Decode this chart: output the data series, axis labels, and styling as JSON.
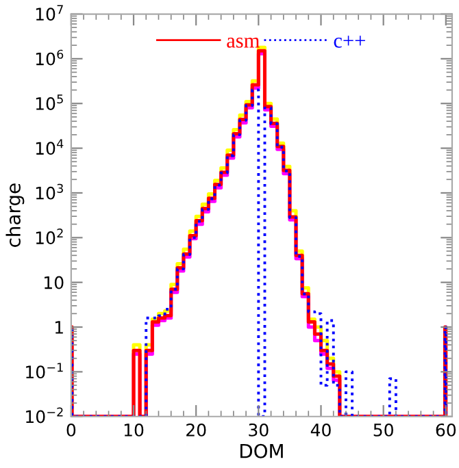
{
  "chart_data": {
    "type": "histogram",
    "xlabel": "DOM",
    "ylabel": "charge",
    "log": "y",
    "bins": [
      0,
      0.15,
      10,
      11,
      12,
      13,
      14,
      15,
      16,
      17,
      18,
      19,
      20,
      21,
      22,
      23,
      24,
      25,
      26,
      27,
      28,
      29,
      30,
      31,
      32,
      33,
      34,
      35,
      36,
      37,
      38,
      39,
      40,
      41,
      42,
      43,
      44,
      45,
      46,
      51,
      52,
      59.85,
      60
    ],
    "series": [
      {
        "color": "#ffff00",
        "line_style": "solid",
        "values": [
          null,
          null,
          0.4,
          null,
          0.4,
          1.5,
          2,
          2.3,
          9,
          26,
          55,
          140,
          300,
          560,
          950,
          1900,
          3600,
          9000,
          26000,
          55000,
          110000,
          320000,
          1800000,
          100000,
          45000,
          13000,
          3900,
          400,
          50,
          7.5,
          1.5,
          1,
          0.5,
          0.2,
          0.1,
          null,
          null,
          null,
          null,
          null,
          null,
          null
        ]
      },
      {
        "color": "#ff00ff",
        "line_style": "solid",
        "values": [
          null,
          null,
          0.25,
          null,
          0.25,
          1.1,
          1.4,
          1.6,
          6,
          18,
          37,
          95,
          200,
          380,
          650,
          1300,
          2500,
          6000,
          18000,
          37000,
          80000,
          220000,
          1300000,
          72000,
          31000,
          9400,
          2700,
          250,
          34,
          4.8,
          1,
          0.5,
          0.25,
          0.12,
          0.065,
          null,
          null,
          null,
          null,
          null,
          null,
          null
        ]
      },
      {
        "name": "asm",
        "color": "#ff0000",
        "line_style": "solid",
        "values": [
          1,
          null,
          0.3,
          null,
          0.3,
          1.3,
          1.6,
          1.8,
          7,
          21,
          43,
          110,
          240,
          450,
          760,
          1550,
          2900,
          7000,
          21000,
          44000,
          93000,
          260000,
          1500000,
          85000,
          36000,
          11000,
          3200,
          290,
          40,
          5.6,
          1.3,
          0.7,
          0.3,
          0.15,
          0.08,
          null,
          null,
          null,
          null,
          null,
          null,
          1
        ]
      },
      {
        "name": "c++",
        "color": "#0000ff",
        "line_style": "dotted",
        "values": [
          1,
          null,
          null,
          null,
          1.6,
          1.6,
          1.8,
          2.5,
          7,
          20,
          42,
          100,
          230,
          430,
          740,
          1500,
          2800,
          6800,
          20000,
          42000,
          90000,
          200000,
          null,
          80000,
          35000,
          10500,
          3100,
          280,
          38,
          5.5,
          2.2,
          2.0,
          0.05,
          1.4,
          0.05,
          null,
          0.1,
          null,
          null,
          0.07,
          null,
          1
        ]
      }
    ],
    "xlim": [
      0,
      61
    ],
    "xticks": [
      0,
      10,
      20,
      30,
      40,
      50,
      60
    ],
    "ylim": [
      0.01,
      10000000
    ],
    "yticks": [
      {
        "value": 0.01,
        "label": "10$^{−2}$"
      },
      {
        "value": 0.1,
        "label": "10$^{−1}$"
      },
      1,
      10,
      {
        "value": 100,
        "label": "10$^{2}$"
      },
      {
        "value": 1000,
        "label": "10$^{3}$"
      },
      {
        "value": 10000,
        "label": "10$^{4}$"
      },
      {
        "value": 100000,
        "label": "10$^{5}$"
      },
      {
        "value": 1000000,
        "label": "10$^{6}$"
      },
      {
        "value": 10000000,
        "label": "10$^{7}$"
      }
    ],
    "grid": false,
    "legend": "top"
  }
}
